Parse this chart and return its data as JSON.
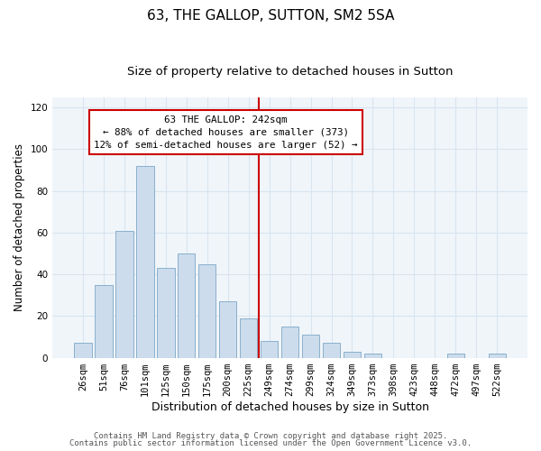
{
  "title": "63, THE GALLOP, SUTTON, SM2 5SA",
  "subtitle": "Size of property relative to detached houses in Sutton",
  "xlabel": "Distribution of detached houses by size in Sutton",
  "ylabel": "Number of detached properties",
  "bar_labels": [
    "26sqm",
    "51sqm",
    "76sqm",
    "101sqm",
    "125sqm",
    "150sqm",
    "175sqm",
    "200sqm",
    "225sqm",
    "249sqm",
    "274sqm",
    "299sqm",
    "324sqm",
    "349sqm",
    "373sqm",
    "398sqm",
    "423sqm",
    "448sqm",
    "472sqm",
    "497sqm",
    "522sqm"
  ],
  "bar_values": [
    7,
    35,
    61,
    92,
    43,
    50,
    45,
    27,
    19,
    8,
    15,
    11,
    7,
    3,
    2,
    0,
    0,
    0,
    2,
    0,
    2
  ],
  "bar_color": "#ccdcec",
  "bar_edge_color": "#8ab0cc",
  "ylim": [
    0,
    125
  ],
  "yticks": [
    0,
    20,
    40,
    60,
    80,
    100,
    120
  ],
  "vline_index": 8.5,
  "vline_color": "#cc0000",
  "annotation_line1": "63 THE GALLOP: 242sqm",
  "annotation_line2": "← 88% of detached houses are smaller (373)",
  "annotation_line3": "12% of semi-detached houses are larger (52) →",
  "annotation_box_color": "#ffffff",
  "annotation_border_color": "#cc0000",
  "footer_line1": "Contains HM Land Registry data © Crown copyright and database right 2025.",
  "footer_line2": "Contains public sector information licensed under the Open Government Licence v3.0.",
  "bg_color": "#ffffff",
  "plot_bg_color": "#f0f5fa",
  "grid_color": "#d8e4ef",
  "title_fontsize": 11,
  "subtitle_fontsize": 9.5,
  "xlabel_fontsize": 9,
  "ylabel_fontsize": 8.5,
  "tick_fontsize": 7.5,
  "footer_fontsize": 6.5
}
